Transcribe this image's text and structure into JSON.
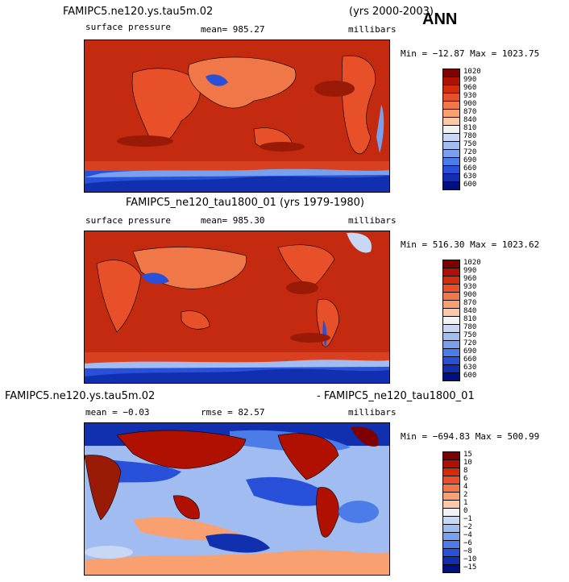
{
  "header_right": "ANN",
  "panels": [
    {
      "title_left": "FAMIPC5.ne120.ys.tau5m.02",
      "title_right": "(yrs 2000-2003)",
      "variable": "surface pressure",
      "stat": "mean= 985.27",
      "units": "millibars",
      "minmax": "Min = −12.87 Max = 1023.75",
      "legend": [
        "1020",
        "990",
        "960",
        "930",
        "900",
        "870",
        "840",
        "810",
        "780",
        "750",
        "720",
        "690",
        "660",
        "630",
        "600"
      ]
    },
    {
      "title_center": "FAMIPC5_ne120_tau1800_01 (yrs 1979-1980)",
      "variable": "surface pressure",
      "stat": "mean= 985.30",
      "units": "millibars",
      "minmax": "Min = 516.30 Max = 1023.62",
      "legend": [
        "1020",
        "990",
        "960",
        "930",
        "900",
        "870",
        "840",
        "810",
        "780",
        "750",
        "720",
        "690",
        "660",
        "630",
        "600"
      ]
    },
    {
      "title_left": "FAMIPC5.ne120.ys.tau5m.02",
      "title_right": "- FAMIPC5_ne120_tau1800_01",
      "stat_left": "mean =  −0.03",
      "stat": "rmse =  82.57",
      "units": "millibars",
      "minmax": "Min = −694.83 Max = 500.99",
      "legend": [
        "15",
        "10",
        "8",
        "6",
        "4",
        "2",
        "1",
        "0",
        "−1",
        "−2",
        "−4",
        "−6",
        "−8",
        "−10",
        "−15"
      ]
    }
  ],
  "colors": {
    "pressure_scale": [
      "#7f0000",
      "#b01000",
      "#d42c0a",
      "#e8502a",
      "#f07848",
      "#f8a070",
      "#fcc8a8",
      "#f2f2f2",
      "#c8d8f4",
      "#a0bcf0",
      "#78a0ec",
      "#4c7ce8",
      "#2850d8",
      "#1030b0",
      "#001080"
    ],
    "diff_scale": [
      "#7f0000",
      "#b01000",
      "#d42c0a",
      "#e8502a",
      "#f07848",
      "#f8a070",
      "#fcc8a8",
      "#f2f2f2",
      "#c8d8f4",
      "#a0bcf0",
      "#78a0ec",
      "#4c7ce8",
      "#2850d8",
      "#1030b0",
      "#001080"
    ]
  },
  "chart_data": [
    {
      "type": "heatmap",
      "title": "FAMIPC5.ne120.ys.tau5m.02 (yrs 2000-2003)",
      "subtitle": "surface pressure",
      "units": "millibars",
      "mean": 985.27,
      "min": -12.87,
      "max": 1023.75,
      "levels": [
        600,
        630,
        660,
        690,
        720,
        750,
        780,
        810,
        840,
        870,
        900,
        930,
        960,
        990,
        1020
      ]
    },
    {
      "type": "heatmap",
      "title": "FAMIPC5_ne120_tau1800_01 (yrs 1979-1980)",
      "subtitle": "surface pressure",
      "units": "millibars",
      "mean": 985.3,
      "min": 516.3,
      "max": 1023.62,
      "levels": [
        600,
        630,
        660,
        690,
        720,
        750,
        780,
        810,
        840,
        870,
        900,
        930,
        960,
        990,
        1020
      ]
    },
    {
      "type": "heatmap",
      "title": "FAMIPC5.ne120.ys.tau5m.02 - FAMIPC5_ne120_tau1800_01",
      "units": "millibars",
      "mean": -0.03,
      "rmse": 82.57,
      "min": -694.83,
      "max": 500.99,
      "levels": [
        -15,
        -10,
        -8,
        -6,
        -4,
        -2,
        -1,
        0,
        1,
        2,
        4,
        6,
        8,
        10,
        15
      ]
    }
  ]
}
